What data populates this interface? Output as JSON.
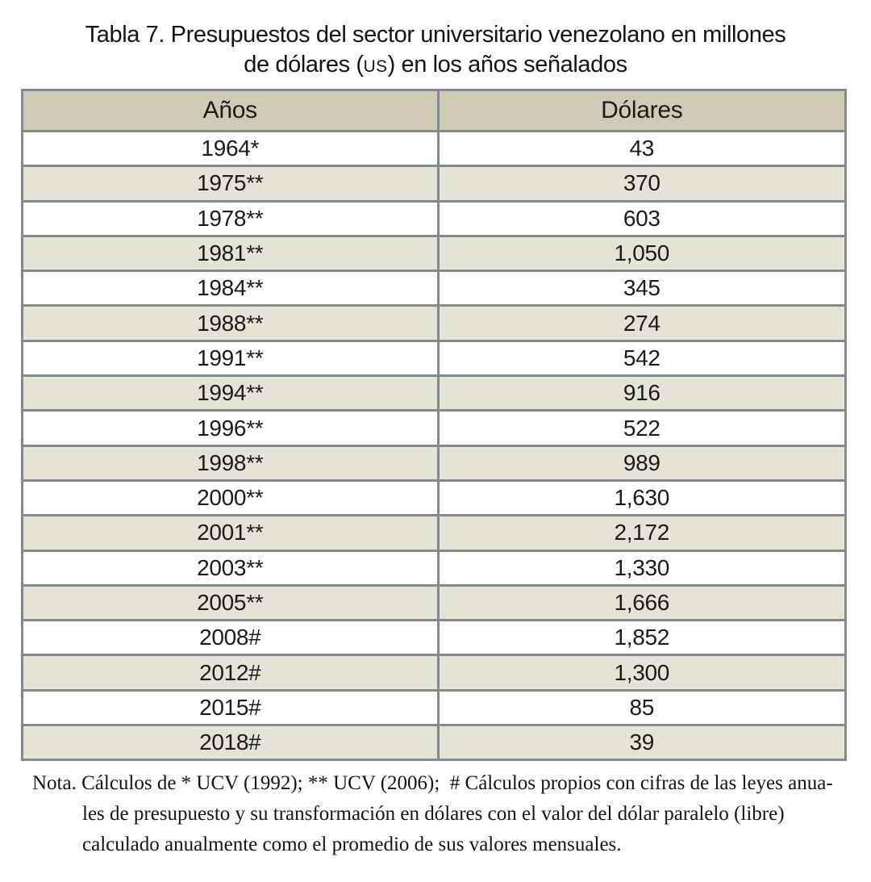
{
  "title": {
    "line1": "Tabla 7. Presupuestos del sector universitario venezolano en millones",
    "line2_prefix": "de dólares (",
    "line2_smallcaps": "US",
    "line2_suffix": ") en los años señalados"
  },
  "table": {
    "headers": [
      "Años",
      "Dólares"
    ],
    "rows": [
      [
        "1964*",
        "43"
      ],
      [
        "1975**",
        "370"
      ],
      [
        "1978**",
        "603"
      ],
      [
        "1981**",
        "1,050"
      ],
      [
        "1984**",
        "345"
      ],
      [
        "1988**",
        "274"
      ],
      [
        "1991**",
        "542"
      ],
      [
        "1994**",
        "916"
      ],
      [
        "1996**",
        "522"
      ],
      [
        "1998**",
        "989"
      ],
      [
        "2000**",
        "1,630"
      ],
      [
        "2001**",
        "2,172"
      ],
      [
        "2003**",
        "1,330"
      ],
      [
        "2005**",
        "1,666"
      ],
      [
        "2008#",
        "1,852"
      ],
      [
        "2012#",
        "1,300"
      ],
      [
        "2015#",
        "85"
      ],
      [
        "2018#",
        "39"
      ]
    ]
  },
  "note": {
    "lines": [
      "Nota. Cálculos de * UCV (1992); ** UCV (2006);  # Cálculos propios con cifras de las leyes anua-",
      "les de presupuesto y su transformación en dólares con el valor del dólar paralelo (libre)",
      "calculado anualmente como el promedio de sus valores mensuales."
    ]
  },
  "colors": {
    "header_bg": "#cecab6",
    "row_bg": "#ffffff",
    "row_alt_bg": "#e5e2d6",
    "border": "#828a8b",
    "text": "#1b1b1b"
  }
}
